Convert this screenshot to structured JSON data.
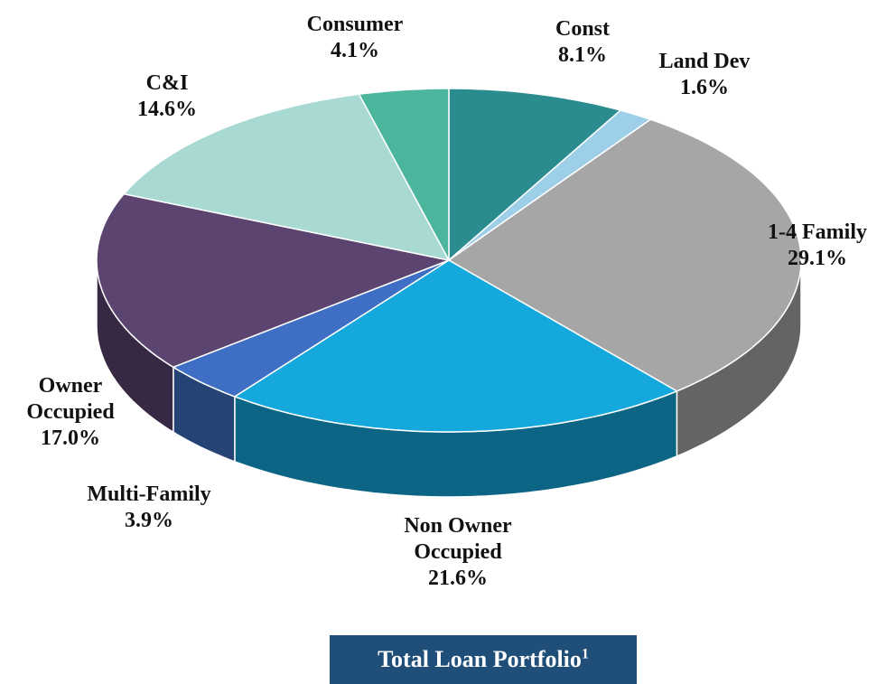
{
  "chart_data": {
    "type": "pie3d",
    "title": "Total Loan Portfolio",
    "title_footnote": "1",
    "categories": [
      "Const",
      "Land Dev",
      "1-4 Family",
      "Non Owner Occupied",
      "Multi-Family",
      "Owner Occupied",
      "C&I",
      "Consumer"
    ],
    "values": [
      8.1,
      1.6,
      29.1,
      21.6,
      3.9,
      17.0,
      14.6,
      4.1
    ],
    "value_labels": [
      "8.1%",
      "1.6%",
      "29.1%",
      "21.6%",
      "3.9%",
      "17.0%",
      "14.6%",
      "4.1%"
    ],
    "colors": [
      "#2a8c8f",
      "#9dd0e8",
      "#a6a6a6",
      "#14a8dc",
      "#3f6fc4",
      "#5b4470",
      "#a9d9d3",
      "#4bb59d"
    ]
  }
}
